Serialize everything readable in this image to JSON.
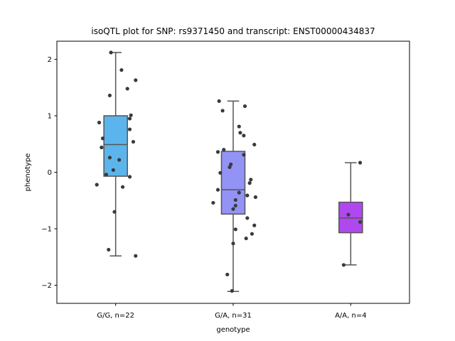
{
  "chart_data": {
    "type": "box",
    "title": "isoQTL plot for SNP: rs9371450 and transcript: ENST00000434837",
    "xlabel": "genotype",
    "ylabel": "phenotype",
    "ylim": [
      -2.32,
      2.32
    ],
    "yticks": [
      -2,
      -1,
      0,
      1,
      2
    ],
    "ytick_labels": [
      "−2",
      "−1",
      "0",
      "1",
      "2"
    ],
    "grid": false,
    "legend": "none",
    "categories": [
      "G/G, n=22",
      "G/A, n=31",
      "A/A, n=4"
    ],
    "boxes": [
      {
        "category": "G/G, n=22",
        "color": "#5bb5ec",
        "whislo": -1.48,
        "q1": -0.07,
        "median": 0.49,
        "q3": 1.0,
        "whishi": 2.12
      },
      {
        "category": "G/A, n=31",
        "color": "#9393f6",
        "whislo": -2.11,
        "q1": -0.74,
        "median": -0.31,
        "q3": 0.37,
        "whishi": 1.26
      },
      {
        "category": "A/A, n=4",
        "color": "#b048ef",
        "whislo": -1.64,
        "q1": -1.07,
        "median": -0.81,
        "q3": -0.53,
        "whishi": 0.17
      }
    ],
    "points": [
      [
        {
          "dx": -0.04,
          "y": 2.12
        },
        {
          "dx": 0.05,
          "y": 1.81
        },
        {
          "dx": 0.17,
          "y": 1.63
        },
        {
          "dx": 0.1,
          "y": 1.48
        },
        {
          "dx": -0.05,
          "y": 1.36
        },
        {
          "dx": 0.13,
          "y": 1.01
        },
        {
          "dx": 0.12,
          "y": 0.95
        },
        {
          "dx": -0.14,
          "y": 0.88
        },
        {
          "dx": 0.12,
          "y": 0.76
        },
        {
          "dx": -0.11,
          "y": 0.6
        },
        {
          "dx": 0.15,
          "y": 0.54
        },
        {
          "dx": -0.12,
          "y": 0.44
        },
        {
          "dx": -0.05,
          "y": 0.26
        },
        {
          "dx": 0.03,
          "y": 0.22
        },
        {
          "dx": -0.02,
          "y": 0.04
        },
        {
          "dx": -0.08,
          "y": -0.04
        },
        {
          "dx": 0.12,
          "y": -0.08
        },
        {
          "dx": -0.16,
          "y": -0.22
        },
        {
          "dx": 0.06,
          "y": -0.26
        },
        {
          "dx": -0.01,
          "y": -0.7
        },
        {
          "dx": -0.06,
          "y": -1.37
        },
        {
          "dx": 0.17,
          "y": -1.48
        }
      ],
      [
        {
          "dx": -0.12,
          "y": 1.26
        },
        {
          "dx": 0.1,
          "y": 1.17
        },
        {
          "dx": -0.09,
          "y": 1.09
        },
        {
          "dx": 0.05,
          "y": 0.81
        },
        {
          "dx": 0.06,
          "y": 0.7
        },
        {
          "dx": 0.09,
          "y": 0.65
        },
        {
          "dx": 0.18,
          "y": 0.49
        },
        {
          "dx": -0.08,
          "y": 0.4
        },
        {
          "dx": -0.13,
          "y": 0.36
        },
        {
          "dx": 0.09,
          "y": 0.31
        },
        {
          "dx": -0.02,
          "y": 0.14
        },
        {
          "dx": -0.03,
          "y": 0.09
        },
        {
          "dx": -0.11,
          "y": -0.01
        },
        {
          "dx": 0.15,
          "y": -0.13
        },
        {
          "dx": 0.14,
          "y": -0.19
        },
        {
          "dx": -0.13,
          "y": -0.31
        },
        {
          "dx": 0.05,
          "y": -0.36
        },
        {
          "dx": 0.12,
          "y": -0.41
        },
        {
          "dx": 0.19,
          "y": -0.44
        },
        {
          "dx": 0.02,
          "y": -0.49
        },
        {
          "dx": -0.17,
          "y": -0.54
        },
        {
          "dx": 0.02,
          "y": -0.59
        },
        {
          "dx": 0.0,
          "y": -0.65
        },
        {
          "dx": 0.12,
          "y": -0.81
        },
        {
          "dx": 0.18,
          "y": -0.94
        },
        {
          "dx": 0.02,
          "y": -1.01
        },
        {
          "dx": 0.16,
          "y": -1.09
        },
        {
          "dx": 0.11,
          "y": -1.17
        },
        {
          "dx": 0.0,
          "y": -1.26
        },
        {
          "dx": -0.05,
          "y": -1.81
        },
        {
          "dx": -0.01,
          "y": -2.1
        }
      ],
      [
        {
          "dx": 0.08,
          "y": 0.17
        },
        {
          "dx": -0.02,
          "y": -0.75
        },
        {
          "dx": 0.08,
          "y": -0.88
        },
        {
          "dx": -0.06,
          "y": -1.64
        }
      ]
    ],
    "point_color": "#3a3a3a",
    "line_color": "#555555"
  }
}
